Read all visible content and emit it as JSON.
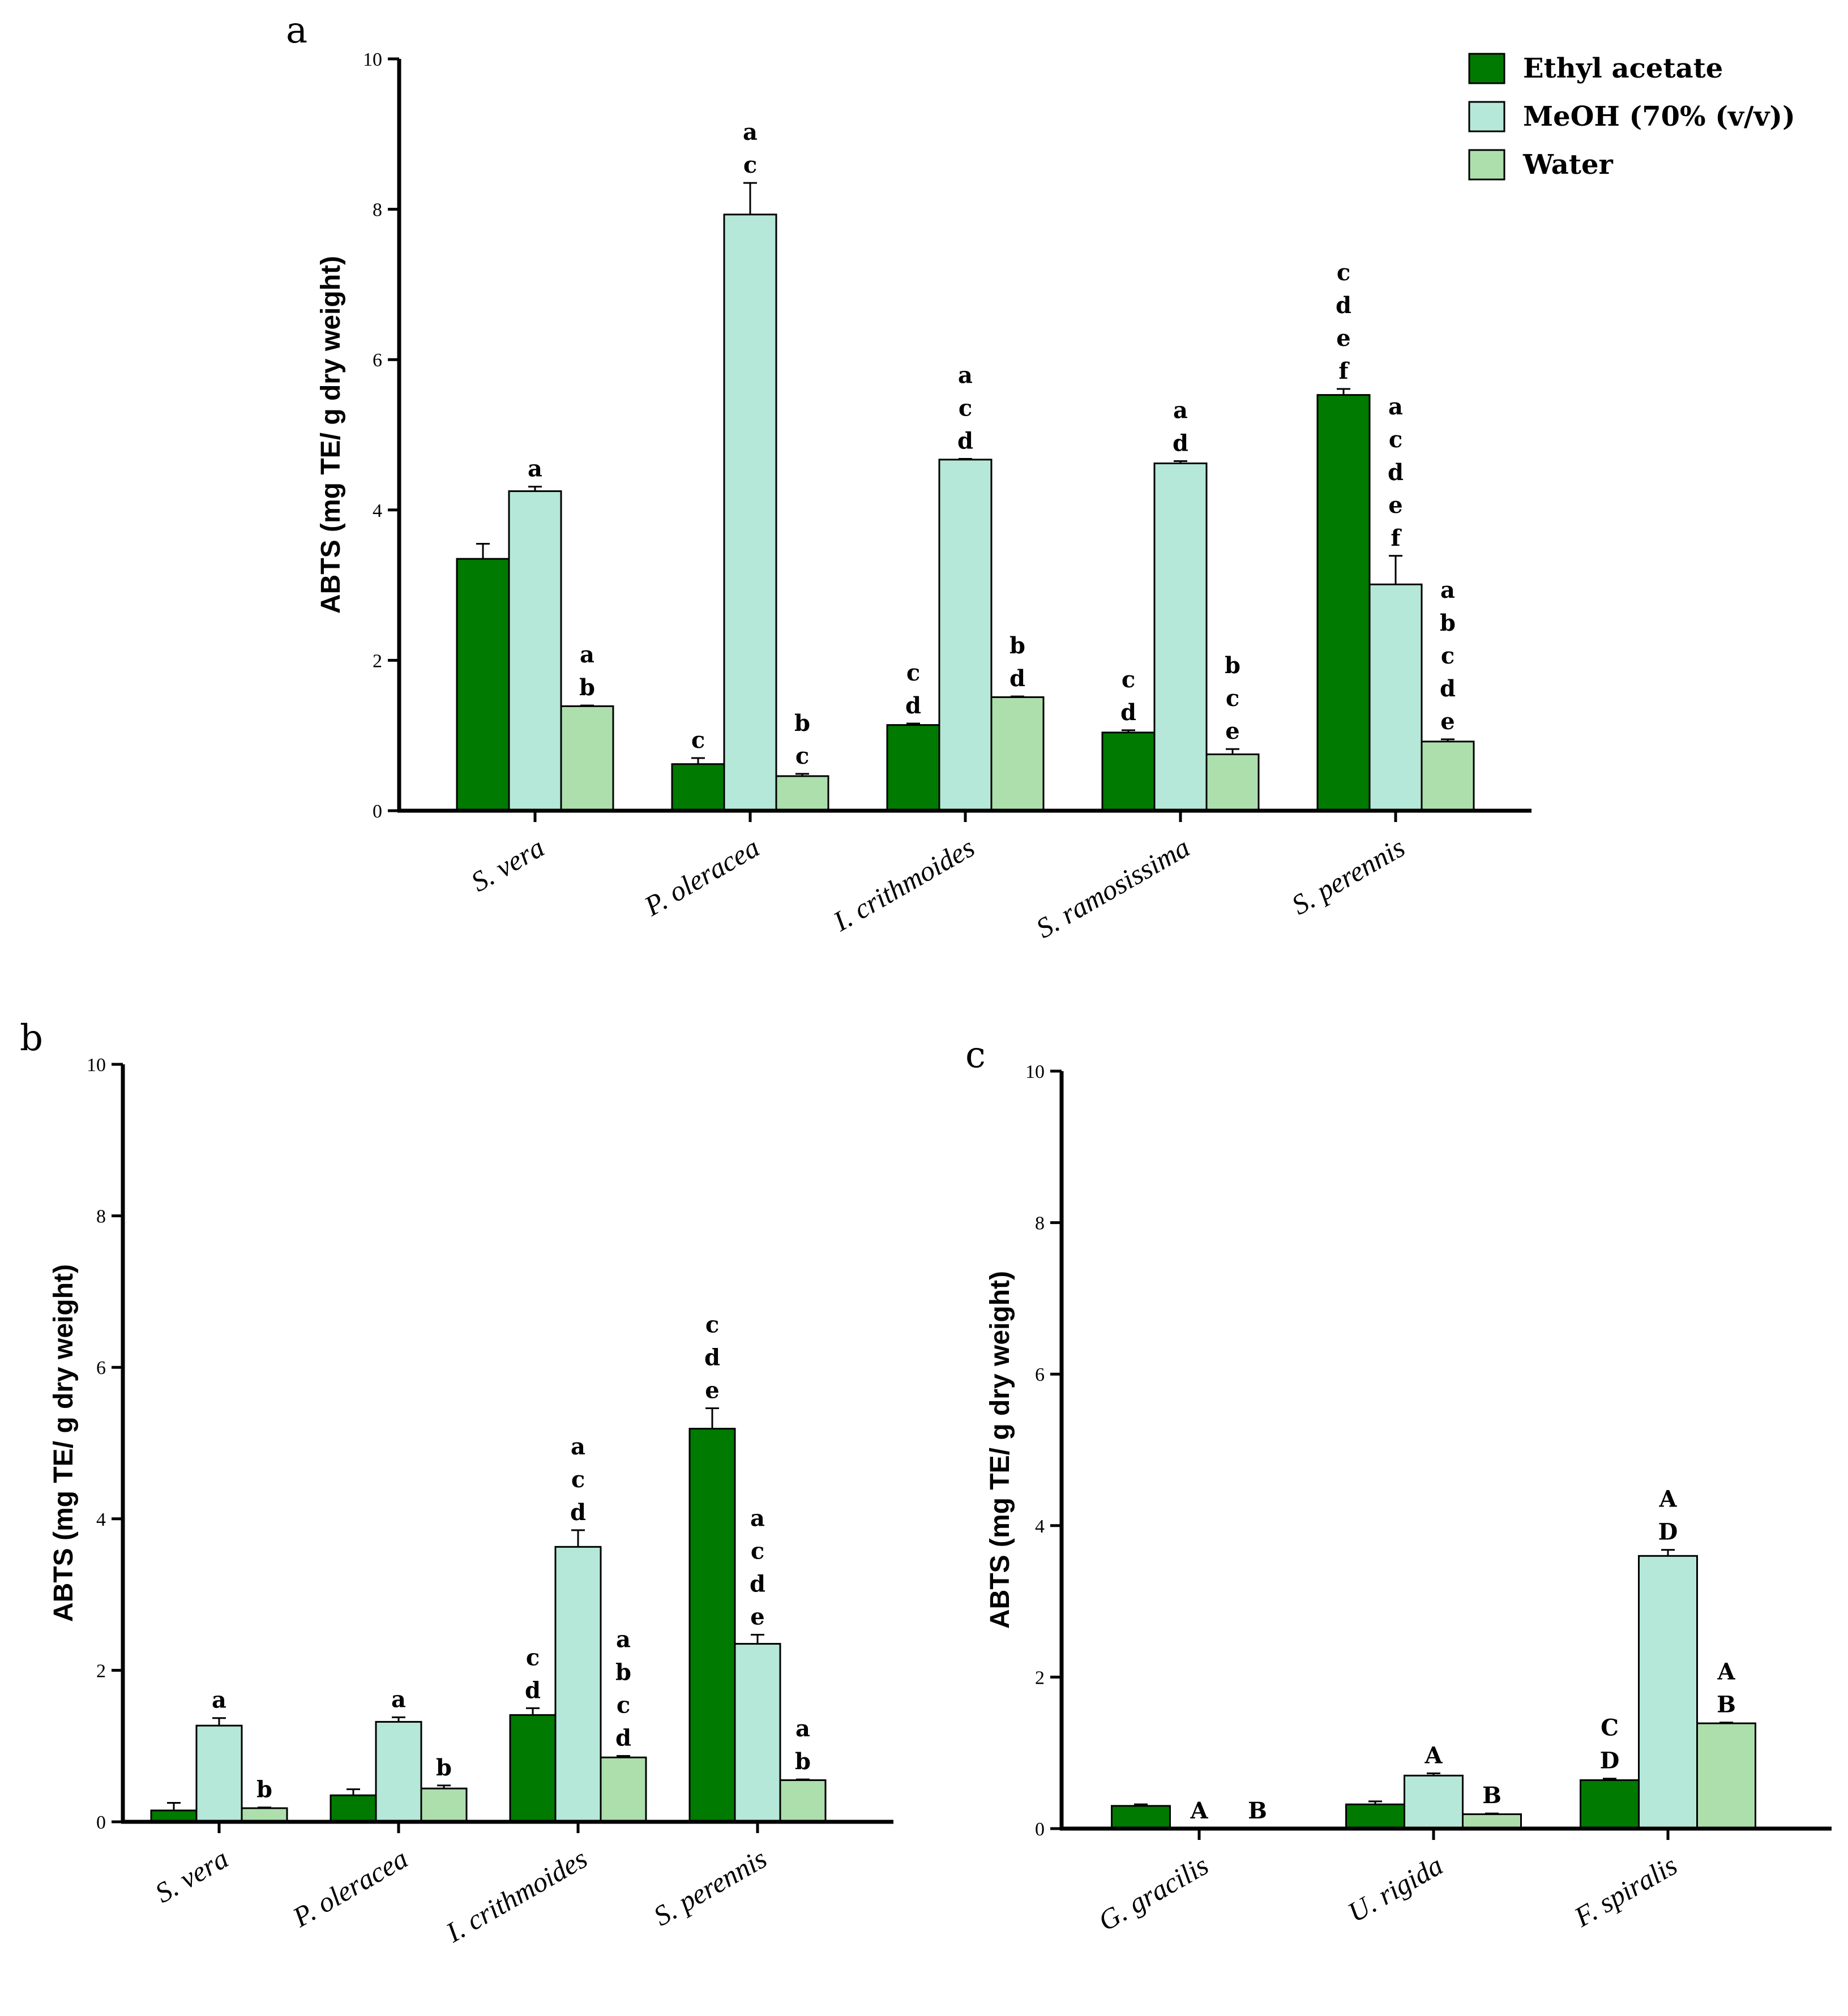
{
  "legend": [
    {
      "name": "Ethyl acetate",
      "color": "#007a00"
    },
    {
      "name": "MeOH (70% (v/v))",
      "color": "#b5e8d8"
    },
    {
      "name": "Water",
      "color": "#addfad"
    }
  ],
  "chart_data": [
    {
      "panel": "a",
      "type": "bar",
      "title": "",
      "xlabel": "",
      "ylabel": "ABTS (mg TE/ g dry weight)",
      "ylim": [
        0,
        10
      ],
      "yticks": [
        "0",
        "2",
        "4",
        "6",
        "8",
        "10"
      ],
      "categories": [
        "S. vera",
        "P. oleracea",
        "I. crithmoides",
        "S. ramosissima",
        "S. perennis"
      ],
      "series": [
        {
          "name": "Ethyl acetate",
          "values": [
            3.35,
            0.62,
            1.14,
            1.04,
            5.53
          ],
          "errors": [
            0.2,
            0.08,
            0.02,
            0.03,
            0.08
          ],
          "labels": [
            [],
            [
              "c"
            ],
            [
              "c",
              "d"
            ],
            [
              "c",
              "d"
            ],
            [
              "c",
              "d",
              "e",
              "f"
            ]
          ]
        },
        {
          "name": "MeOH (70% (v/v))",
          "values": [
            4.25,
            7.93,
            4.67,
            4.62,
            3.01
          ],
          "errors": [
            0.06,
            0.42,
            0.01,
            0.03,
            0.38
          ],
          "labels": [
            [
              "a"
            ],
            [
              "a",
              "c"
            ],
            [
              "a",
              "c",
              "d"
            ],
            [
              "a",
              "d"
            ],
            [
              "a",
              "c",
              "d",
              "e",
              "f"
            ]
          ]
        },
        {
          "name": "Water",
          "values": [
            1.39,
            0.46,
            1.51,
            0.75,
            0.92
          ],
          "errors": [
            0.01,
            0.03,
            0.01,
            0.07,
            0.03
          ],
          "labels": [
            [
              "a",
              "b"
            ],
            [
              "b",
              "c"
            ],
            [
              "b",
              "d"
            ],
            [
              "b",
              "c",
              "e"
            ],
            [
              "a",
              "b",
              "c",
              "d",
              "e"
            ]
          ]
        }
      ]
    },
    {
      "panel": "b",
      "type": "bar",
      "title": "",
      "xlabel": "",
      "ylabel": "ABTS (mg TE/ g dry weight)",
      "ylim": [
        0,
        10
      ],
      "yticks": [
        "0",
        "2",
        "4",
        "6",
        "8",
        "10"
      ],
      "categories": [
        "S. vera",
        "P. oleracea",
        "I. crithmoides",
        "S. perennis"
      ],
      "series": [
        {
          "name": "Ethyl acetate",
          "values": [
            0.15,
            0.35,
            1.41,
            5.19
          ],
          "errors": [
            0.1,
            0.08,
            0.09,
            0.27
          ],
          "labels": [
            [],
            [],
            [
              "c",
              "d"
            ],
            [
              "c",
              "d",
              "e"
            ]
          ]
        },
        {
          "name": "MeOH (70% (v/v))",
          "values": [
            1.27,
            1.32,
            3.63,
            2.35
          ],
          "errors": [
            0.1,
            0.06,
            0.22,
            0.12
          ],
          "labels": [
            [
              "a"
            ],
            [
              "a"
            ],
            [
              "a",
              "c",
              "d"
            ],
            [
              "a",
              "c",
              "d",
              "e"
            ]
          ]
        },
        {
          "name": "Water",
          "values": [
            0.18,
            0.44,
            0.85,
            0.55
          ],
          "errors": [
            0.01,
            0.04,
            0.02,
            0.01
          ],
          "labels": [
            [
              "b"
            ],
            [
              "b"
            ],
            [
              "a",
              "b",
              "c",
              "d"
            ],
            [
              "a",
              "b"
            ]
          ]
        }
      ]
    },
    {
      "panel": "c",
      "type": "bar",
      "title": "",
      "xlabel": "",
      "ylabel": "ABTS (mg TE/ g dry weight)",
      "ylim": [
        0,
        10
      ],
      "yticks": [
        "0",
        "2",
        "4",
        "6",
        "8",
        "10"
      ],
      "categories": [
        "G. gracilis",
        "U. rigida",
        "F. spiralis"
      ],
      "series": [
        {
          "name": "Ethyl acetate",
          "values": [
            0.3,
            0.32,
            0.64
          ],
          "errors": [
            0.02,
            0.04,
            0.02
          ],
          "labels": [
            [],
            [],
            [
              "C",
              "D"
            ]
          ]
        },
        {
          "name": "MeOH (70% (v/v))",
          "values": [
            0,
            0.7,
            3.6
          ],
          "errors": [
            0,
            0.03,
            0.08
          ],
          "labels": [
            [
              "A"
            ],
            [
              "A"
            ],
            [
              "A",
              "D"
            ]
          ]
        },
        {
          "name": "Water",
          "values": [
            0,
            0.19,
            1.39
          ],
          "errors": [
            0,
            0.01,
            0.01
          ],
          "labels": [
            [
              "B"
            ],
            [
              "B"
            ],
            [
              "A",
              "B"
            ]
          ]
        }
      ]
    }
  ]
}
